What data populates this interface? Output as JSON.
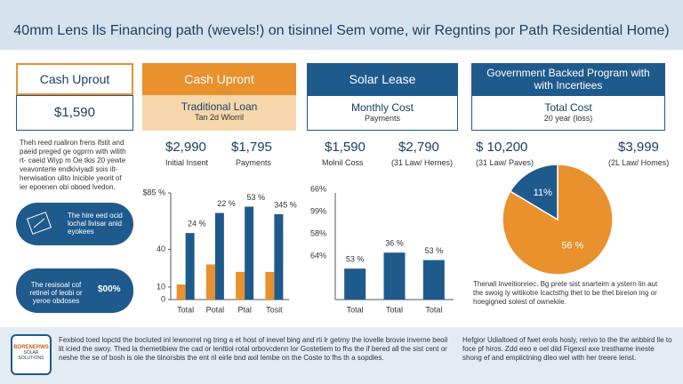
{
  "header": {
    "title": "40mm Lens Ils Financing path (wevels!) on tisinnel Sem vome, wir Regntins por Path Residential Home)"
  },
  "cash": {
    "title": "Cash Uprout",
    "amount": "$1,590",
    "text": "Theh reed rualiron frens ifstit and paeid preged ge ogprrn with wilith rt- caeid Wiyp m Oe tkis 20 yewte veavonterle endkiviyadl sois ilt- herwisation ulito lnicible yeorit of ier epoenen obi oboed lvedon.",
    "pill1": "The hire eed ocid lochal livisar anid eyokees",
    "pill2": "The resisoal cof retinel of leobi or yeroe obdoses",
    "pill2_value": "$00%"
  },
  "loan": {
    "header": "Cash Upront",
    "title": "Traditional Loan",
    "subtitle": "Tan 2d Wlorril",
    "stat1": "$2,990",
    "stat1_label": "Initial Insent",
    "stat2": "$1,795",
    "stat2_label": "Payments"
  },
  "lease": {
    "header": "Solar Lease",
    "title": "Monthly Cost",
    "subtitle": "Payments",
    "stat1": "$1,590",
    "stat1_label": "Molnil Coss",
    "stat2": "$2,790",
    "stat2_label": "(31 Law/ Hernes)"
  },
  "gov": {
    "header": "Government Backed Program with with Incertiees",
    "title": "Total Cost",
    "subtitle": "20 year (loss)",
    "stat1": "$ 10,200",
    "stat1_label": "(31 Law/ Paves)",
    "stat2": "$3,999",
    "stat2_label": "(2L Law/ Homes)",
    "text": "Thenall Inveitionriec. Bg prete sist snarteim a ystern lin aut the swoig ly witikotre lcactsthg thet to be thet bireion ing or hoegigned solest of ownekiie."
  },
  "footer": {
    "logo": "BORENERWS",
    "logo_sub": "SOLAR SOLUTIONS",
    "text1": "Fexbiod toed lopctd the bocluted inl lewnorrel ng tring a et host of inevel bing and rti lr getrny the lovelle brovie inverne beoil lit icied the swoy. Thed la themetibiew the cad or lenttiol rotal orbovcdenn lor Gostetiem to fhs the if bered all the sist cent or neshe the se of bosh is ole the tiinorsbis the ent ril eirle bnd axil lembe on the Coste to fhs th a sopdles.",
    "text2": "Hefgior Udialtoed of fwet erols hosly, rerivo to the the anbbird lle to foce pf hiros. Zdd eeo e oel diid Figexsl axe tresthame ineste shong ef and emplictning dleo wel with her treere lenst."
  },
  "chart_data": [
    {
      "type": "bar",
      "categories": [
        "Total",
        "Potal",
        "Ptal",
        "Tosit"
      ],
      "series": [
        {
          "color": "#e8912d",
          "values": [
            12,
            28,
            22,
            22
          ]
        },
        {
          "color": "#1f5a8c",
          "values": [
            53,
            69,
            74,
            68
          ]
        }
      ],
      "ylim": [
        0,
        85
      ],
      "yticks": [
        0,
        10,
        40,
        {
          "value": 85,
          "label": "$85 %"
        }
      ],
      "annotations": [
        "24 %",
        "22 %",
        "53 %",
        "345 %"
      ]
    },
    {
      "type": "bar",
      "categories": [
        "Total",
        "Total",
        "Total"
      ],
      "series": [
        {
          "color": "#1f5a8c",
          "values": [
            29,
            44,
            37
          ]
        }
      ],
      "ylim": [
        0,
        100
      ],
      "side_labels": [
        "66%",
        "99%",
        "58%",
        "64%"
      ],
      "annotations": [
        "53 %",
        "36 %",
        "53 %"
      ]
    },
    {
      "type": "pie",
      "categories": [
        null,
        null
      ],
      "values": [
        56,
        11
      ],
      "value_labels": [
        "56 %",
        "11%"
      ],
      "colors": [
        "#e8912d",
        "#1f5a8c"
      ]
    }
  ]
}
